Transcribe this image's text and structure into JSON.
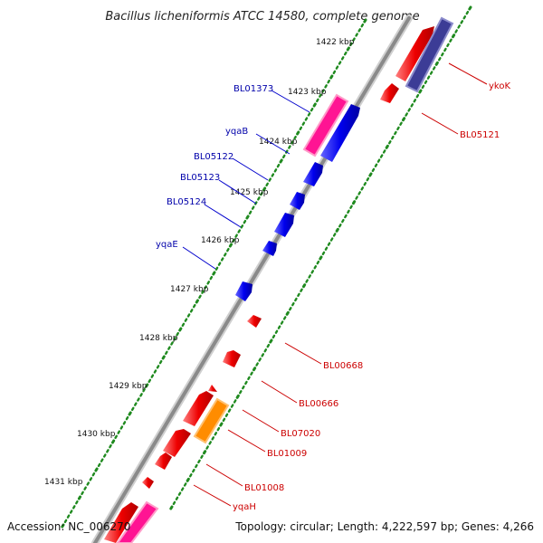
{
  "title": "Bacillus licheniformis ATCC 14580, complete genome",
  "footer": {
    "accession": "Accession: NC_006270",
    "summary": "Topology: circular; Length: 4,222,597 bp; Genes: 4,266"
  },
  "colors": {
    "backbone": "#8a8a8a",
    "tick_dots": "#1f8a1f",
    "forward_gene": "#0000ee",
    "reverse_gene": "#ee0000",
    "forward_label": "#0000aa",
    "reverse_label": "#cc0000",
    "pink_gene": "#ff1493",
    "orange_gene": "#ff8c00",
    "purple_gene": "#3c3c96"
  },
  "ticks": [
    {
      "label": "1422 kbp",
      "kbp": 1422
    },
    {
      "label": "1423 kbp",
      "kbp": 1423
    },
    {
      "label": "1424 kbp",
      "kbp": 1424
    },
    {
      "label": "1425 kbp",
      "kbp": 1425
    },
    {
      "label": "1426 kbp",
      "kbp": 1426
    },
    {
      "label": "1427 kbp",
      "kbp": 1427
    },
    {
      "label": "1428 kbp",
      "kbp": 1428
    },
    {
      "label": "1429 kbp",
      "kbp": 1429
    },
    {
      "label": "1430 kbp",
      "kbp": 1430
    },
    {
      "label": "1431 kbp",
      "kbp": 1431
    }
  ],
  "forward_labels": [
    {
      "name": "BL01373"
    },
    {
      "name": "yqaB"
    },
    {
      "name": "BL05122"
    },
    {
      "name": "BL05123"
    },
    {
      "name": "BL05124"
    },
    {
      "name": "yqaE"
    }
  ],
  "reverse_labels": [
    {
      "name": "ykoK"
    },
    {
      "name": "BL05121"
    },
    {
      "name": "BL00668"
    },
    {
      "name": "BL00666"
    },
    {
      "name": "BL07020"
    },
    {
      "name": "BL01009"
    },
    {
      "name": "BL01008"
    },
    {
      "name": "yqaH"
    }
  ]
}
